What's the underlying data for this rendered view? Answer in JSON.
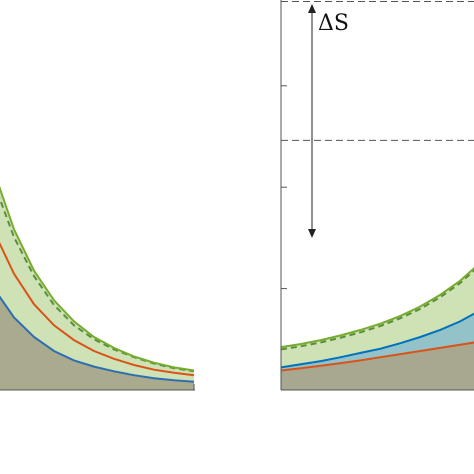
{
  "chart_data": [
    {
      "type": "area",
      "panel": "left",
      "x": [
        0.0,
        0.1,
        0.2,
        0.3,
        0.4,
        0.5,
        0.6,
        0.7,
        0.8,
        0.9,
        1.0
      ],
      "ylim": [
        0,
        10
      ],
      "y_ticks": [],
      "series": [
        {
          "role": "gray-fill-blue-edge",
          "color": "#2f6eae",
          "fill": "#a8a68c",
          "values": [
            2.6,
            1.86,
            1.36,
            1.0,
            0.76,
            0.6,
            0.48,
            0.38,
            0.3,
            0.25,
            0.21
          ]
        },
        {
          "role": "orange-line",
          "color": "#d95319",
          "values": [
            4.06,
            2.98,
            2.2,
            1.66,
            1.28,
            1.0,
            0.8,
            0.64,
            0.52,
            0.44,
            0.38
          ]
        },
        {
          "role": "green-dashed",
          "color": "#5a8f3a",
          "dashed": true,
          "values": [
            5.3,
            3.92,
            2.92,
            2.18,
            1.66,
            1.3,
            1.04,
            0.84,
            0.68,
            0.56,
            0.48
          ]
        },
        {
          "role": "green-solid-upper",
          "color": "#77ac30",
          "fill": "#cfe2b6",
          "values": [
            5.6,
            4.12,
            3.06,
            2.3,
            1.76,
            1.36,
            1.08,
            0.86,
            0.7,
            0.58,
            0.5
          ]
        }
      ]
    },
    {
      "type": "area",
      "panel": "right",
      "x": [
        0.0,
        0.1,
        0.2,
        0.3,
        0.4,
        0.5,
        0.6,
        0.7,
        0.8,
        0.9,
        1.0
      ],
      "ylim": [
        0,
        10
      ],
      "y_ticks": [
        0,
        2.6,
        5.2,
        7.8
      ],
      "reference_levels": [
        6.4,
        10.0
      ],
      "annotation": {
        "text": "ΔS",
        "from": 6.4,
        "to": 10.0
      },
      "series": [
        {
          "role": "gray-fill-orange-edge",
          "color": "#d95319",
          "fill": "#a8a68c",
          "values": [
            0.5,
            0.56,
            0.62,
            0.69,
            0.76,
            0.84,
            0.92,
            1.0,
            1.08,
            1.16,
            1.24
          ]
        },
        {
          "role": "blue-line",
          "color": "#0072bd",
          "fill": "#8fc1c9",
          "values": [
            0.58,
            0.66,
            0.74,
            0.84,
            0.95,
            1.06,
            1.2,
            1.36,
            1.54,
            1.76,
            2.04
          ]
        },
        {
          "role": "green-dashed",
          "color": "#5a8f3a",
          "dashed": true,
          "values": [
            1.04,
            1.12,
            1.22,
            1.34,
            1.48,
            1.64,
            1.84,
            2.08,
            2.38,
            2.74,
            3.2
          ]
        },
        {
          "role": "green-solid-upper",
          "color": "#77ac30",
          "fill": "#cfe2b6",
          "values": [
            1.1,
            1.18,
            1.28,
            1.4,
            1.54,
            1.7,
            1.9,
            2.14,
            2.44,
            2.8,
            3.26
          ]
        }
      ]
    }
  ]
}
